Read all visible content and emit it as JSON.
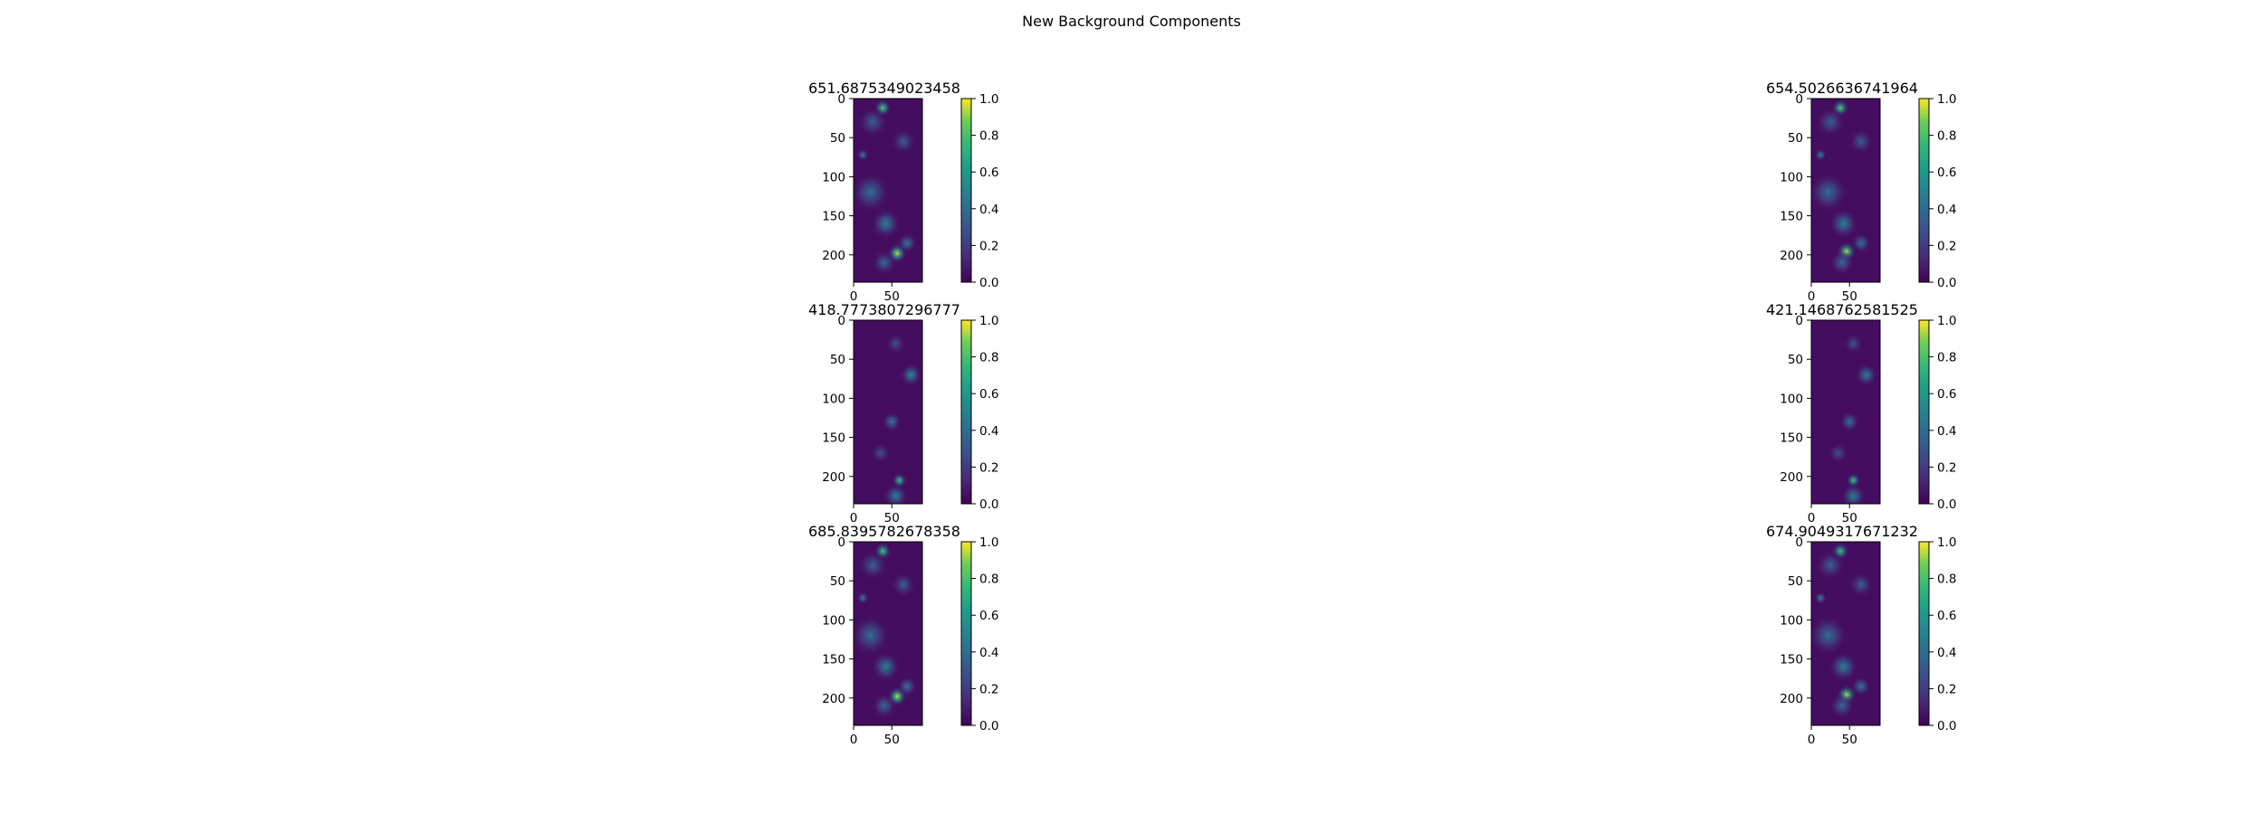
{
  "figure_title": "New Background Components",
  "colormap": "viridis",
  "colorbar_ticks": [
    "0.0",
    "0.2",
    "0.4",
    "0.6",
    "0.8",
    "1.0"
  ],
  "chart_data": [
    {
      "type": "heatmap",
      "title": "651.6875349023458",
      "xticks": [
        "0",
        "50"
      ],
      "yticks": [
        "0",
        "50",
        "100",
        "150",
        "200"
      ],
      "xlim": [
        0,
        90
      ],
      "ylim": [
        235,
        0
      ],
      "clim": [
        0,
        1
      ],
      "blobs": [
        [
          38,
          12,
          7,
          0.85
        ],
        [
          25,
          30,
          12,
          0.35
        ],
        [
          65,
          55,
          10,
          0.35
        ],
        [
          12,
          72,
          5,
          0.5
        ],
        [
          22,
          120,
          16,
          0.42
        ],
        [
          42,
          160,
          12,
          0.5
        ],
        [
          57,
          198,
          8,
          0.95
        ],
        [
          70,
          185,
          8,
          0.45
        ],
        [
          40,
          210,
          10,
          0.4
        ]
      ]
    },
    {
      "type": "heatmap",
      "title": "654.5026636741964",
      "xticks": [
        "0",
        "50"
      ],
      "yticks": [
        "0",
        "50",
        "100",
        "150",
        "200"
      ],
      "xlim": [
        0,
        90
      ],
      "ylim": [
        235,
        0
      ],
      "clim": [
        0,
        1
      ],
      "blobs": [
        [
          38,
          12,
          7,
          0.85
        ],
        [
          25,
          30,
          12,
          0.35
        ],
        [
          65,
          55,
          10,
          0.35
        ],
        [
          12,
          72,
          5,
          0.5
        ],
        [
          22,
          120,
          16,
          0.42
        ],
        [
          42,
          160,
          12,
          0.5
        ],
        [
          46,
          196,
          8,
          0.95
        ],
        [
          65,
          185,
          8,
          0.45
        ],
        [
          40,
          210,
          10,
          0.4
        ]
      ]
    },
    {
      "type": "heatmap",
      "title": "418.7773807296777",
      "xticks": [
        "0",
        "50"
      ],
      "yticks": [
        "0",
        "50",
        "100",
        "150",
        "200"
      ],
      "xlim": [
        0,
        90
      ],
      "ylim": [
        235,
        0
      ],
      "clim": [
        0,
        1
      ],
      "blobs": [
        [
          55,
          30,
          8,
          0.3
        ],
        [
          75,
          70,
          9,
          0.55
        ],
        [
          50,
          130,
          8,
          0.45
        ],
        [
          35,
          170,
          8,
          0.3
        ],
        [
          60,
          205,
          6,
          0.8
        ],
        [
          55,
          225,
          10,
          0.5
        ]
      ]
    },
    {
      "type": "heatmap",
      "title": "421.1468762581525",
      "xticks": [
        "0",
        "50"
      ],
      "yticks": [
        "0",
        "50",
        "100",
        "150",
        "200"
      ],
      "xlim": [
        0,
        90
      ],
      "ylim": [
        235,
        0
      ],
      "clim": [
        0,
        1
      ],
      "blobs": [
        [
          55,
          30,
          8,
          0.3
        ],
        [
          72,
          70,
          9,
          0.5
        ],
        [
          50,
          130,
          8,
          0.45
        ],
        [
          35,
          170,
          8,
          0.3
        ],
        [
          55,
          205,
          6,
          0.8
        ],
        [
          55,
          225,
          10,
          0.5
        ]
      ]
    },
    {
      "type": "heatmap",
      "title": "685.8395782678358",
      "xticks": [
        "0",
        "50"
      ],
      "yticks": [
        "0",
        "50",
        "100",
        "150",
        "200"
      ],
      "xlim": [
        0,
        90
      ],
      "ylim": [
        235,
        0
      ],
      "clim": [
        0,
        1
      ],
      "blobs": [
        [
          38,
          12,
          7,
          0.8
        ],
        [
          25,
          30,
          12,
          0.35
        ],
        [
          65,
          55,
          10,
          0.35
        ],
        [
          12,
          72,
          5,
          0.5
        ],
        [
          22,
          120,
          16,
          0.42
        ],
        [
          42,
          160,
          12,
          0.5
        ],
        [
          57,
          198,
          8,
          0.95
        ],
        [
          70,
          185,
          8,
          0.45
        ],
        [
          40,
          210,
          10,
          0.4
        ]
      ]
    },
    {
      "type": "heatmap",
      "title": "674.9049317671232",
      "xticks": [
        "0",
        "50"
      ],
      "yticks": [
        "0",
        "50",
        "100",
        "150",
        "200"
      ],
      "xlim": [
        0,
        90
      ],
      "ylim": [
        235,
        0
      ],
      "clim": [
        0,
        1
      ],
      "blobs": [
        [
          38,
          12,
          7,
          0.8
        ],
        [
          25,
          30,
          12,
          0.35
        ],
        [
          65,
          55,
          10,
          0.35
        ],
        [
          12,
          72,
          5,
          0.5
        ],
        [
          22,
          120,
          16,
          0.42
        ],
        [
          42,
          160,
          12,
          0.5
        ],
        [
          46,
          196,
          8,
          0.95
        ],
        [
          65,
          185,
          8,
          0.45
        ],
        [
          40,
          210,
          10,
          0.4
        ]
      ]
    }
  ]
}
